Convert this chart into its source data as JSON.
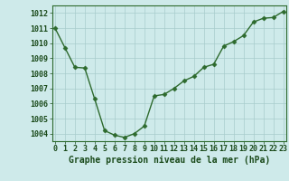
{
  "x": [
    0,
    1,
    2,
    3,
    4,
    5,
    6,
    7,
    8,
    9,
    10,
    11,
    12,
    13,
    14,
    15,
    16,
    17,
    18,
    19,
    20,
    21,
    22,
    23
  ],
  "y": [
    1011.0,
    1009.7,
    1008.4,
    1008.35,
    1006.3,
    1004.2,
    1003.9,
    1003.75,
    1004.0,
    1004.5,
    1006.5,
    1006.6,
    1007.0,
    1007.5,
    1007.8,
    1008.4,
    1008.6,
    1009.8,
    1010.1,
    1010.5,
    1011.4,
    1011.65,
    1011.7,
    1012.1
  ],
  "ylim": [
    1003.5,
    1012.5
  ],
  "yticks": [
    1004,
    1005,
    1006,
    1007,
    1008,
    1009,
    1010,
    1011,
    1012
  ],
  "xticks": [
    0,
    1,
    2,
    3,
    4,
    5,
    6,
    7,
    8,
    9,
    10,
    11,
    12,
    13,
    14,
    15,
    16,
    17,
    18,
    19,
    20,
    21,
    22,
    23
  ],
  "line_color": "#2d6a2d",
  "marker": "D",
  "marker_size": 2.5,
  "bg_color": "#ceeaea",
  "grid_color": "#a8cccc",
  "xlabel": "Graphe pression niveau de la mer (hPa)",
  "xlabel_color": "#1a4a1a",
  "xlabel_fontsize": 7.0,
  "tick_fontsize": 6.0,
  "tick_color": "#1a4a1a",
  "axis_color": "#2d6a2d",
  "linewidth": 1.0
}
